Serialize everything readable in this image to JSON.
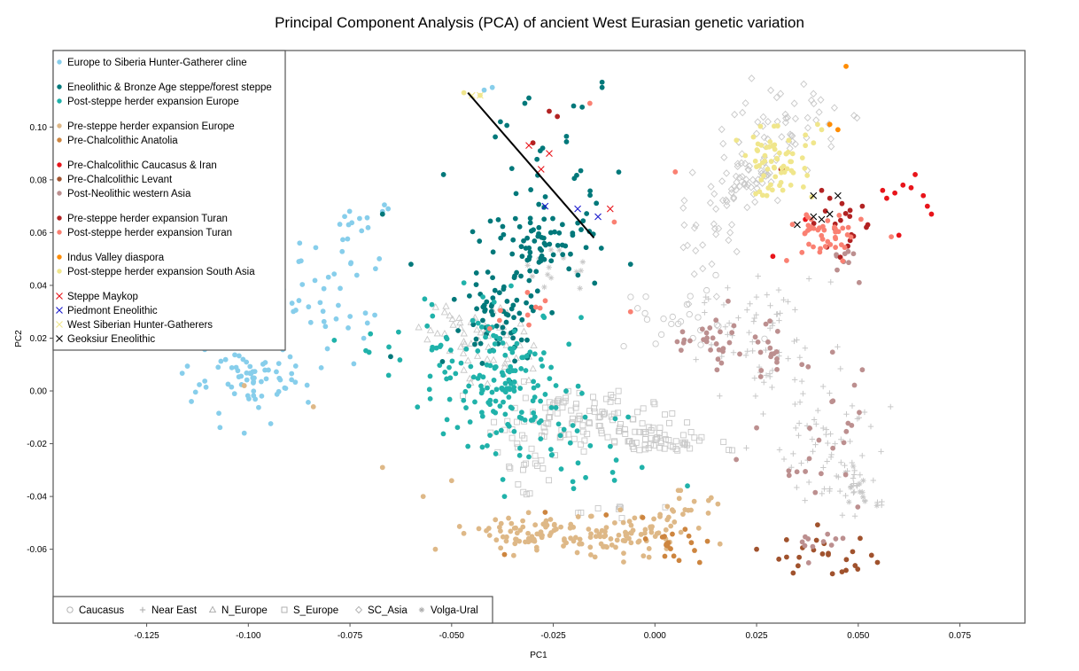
{
  "chart_data": {
    "type": "scatter",
    "title": "Principal Component Analysis (PCA) of ancient West Eurasian genetic variation",
    "xlabel": "PC1",
    "ylabel": "PC2",
    "xlim": [
      -0.148,
      0.091
    ],
    "ylim": [
      -0.088,
      0.129
    ],
    "xticks": [
      "-0.125",
      "-0.100",
      "-0.075",
      "-0.050",
      "-0.025",
      "0.000",
      "0.025",
      "0.050",
      "0.075"
    ],
    "xtick_values": [
      -0.125,
      -0.1,
      -0.075,
      -0.05,
      -0.025,
      0.0,
      0.025,
      0.05,
      0.075
    ],
    "yticks": [
      "-0.06",
      "-0.04",
      "-0.02",
      "0.00",
      "0.02",
      "0.04",
      "0.06",
      "0.08",
      "0.10"
    ],
    "ytick_values": [
      -0.06,
      -0.04,
      -0.02,
      0.0,
      0.02,
      0.04,
      0.06,
      0.08,
      0.1
    ],
    "grid": false,
    "legend_position": "top-left",
    "reference_legend_position": "bottom-left",
    "line": {
      "x": [
        -0.046,
        -0.015
      ],
      "y": [
        0.113,
        0.058
      ],
      "color": "#000000"
    },
    "legend_groups": [
      [
        "Europe to Siberia Hunter-Gatherer cline"
      ],
      [
        "Eneolithic & Bronze Age steppe/forest steppe",
        "Post-steppe herder expansion Europe"
      ],
      [
        "Pre-steppe herder expansion Europe",
        "Pre-Chalcolithic Anatolia"
      ],
      [
        "Pre-Chalcolithic Caucasus & Iran",
        "Pre-Chalcolithic Levant",
        "Post-Neolithic western Asia"
      ],
      [
        "Pre-steppe herder expansion Turan",
        "Post-steppe herder expansion Turan"
      ],
      [
        "Indus Valley diaspora",
        "Post-steppe herder expansion South Asia"
      ],
      [
        "Steppe Maykop",
        "Piedmont Eneolithic",
        "West Siberian Hunter-Gatherers",
        "Geoksiur Eneolithic"
      ]
    ],
    "series": [
      {
        "name": "Europe to Siberia Hunter-Gatherer cline",
        "marker": "dot",
        "color": "#87ceeb",
        "clusters": [
          {
            "cx": -0.1,
            "cy": 0.004,
            "sx": 0.007,
            "sy": 0.007,
            "n": 70
          },
          {
            "cx": -0.085,
            "cy": 0.032,
            "sx": 0.008,
            "sy": 0.012,
            "n": 45
          },
          {
            "cx": -0.072,
            "cy": 0.063,
            "sx": 0.004,
            "sy": 0.005,
            "n": 14
          }
        ],
        "points": [
          [
            -0.114,
            -0.004
          ],
          [
            -0.101,
            -0.016
          ],
          [
            -0.042,
            0.114
          ],
          [
            -0.04,
            0.115
          ],
          [
            -0.094,
            0.033
          ],
          [
            -0.067,
            0.068
          ]
        ]
      },
      {
        "name": "Eneolithic & Bronze Age steppe/forest steppe",
        "marker": "dot",
        "color": "#00787a",
        "clusters": [
          {
            "cx": -0.028,
            "cy": 0.055,
            "sx": 0.007,
            "sy": 0.007,
            "n": 75
          },
          {
            "cx": -0.038,
            "cy": 0.027,
            "sx": 0.006,
            "sy": 0.009,
            "n": 65
          },
          {
            "cx": -0.024,
            "cy": 0.082,
            "sx": 0.009,
            "sy": 0.015,
            "n": 25
          }
        ],
        "points": [
          [
            -0.013,
            0.115
          ],
          [
            -0.013,
            0.117
          ],
          [
            -0.031,
            0.111
          ],
          [
            -0.032,
            0.109
          ],
          [
            -0.052,
            0.082
          ],
          [
            -0.067,
            0.067
          ],
          [
            -0.06,
            0.048
          ],
          [
            -0.006,
            0.048
          ],
          [
            -0.038,
            0.102
          ],
          [
            -0.065,
            0.013
          ],
          [
            -0.02,
            0.108
          ]
        ]
      },
      {
        "name": "Post-steppe herder expansion Europe",
        "marker": "dot",
        "color": "#20b2aa",
        "clusters": [
          {
            "cx": -0.038,
            "cy": 0.007,
            "sx": 0.008,
            "sy": 0.012,
            "n": 130
          },
          {
            "cx": -0.025,
            "cy": -0.017,
            "sx": 0.01,
            "sy": 0.012,
            "n": 45
          },
          {
            "cx": -0.055,
            "cy": 0.018,
            "sx": 0.01,
            "sy": 0.008,
            "n": 20
          }
        ],
        "points": [
          [
            -0.046,
            -0.021
          ],
          [
            -0.037,
            -0.04
          ],
          [
            -0.02,
            -0.037
          ],
          [
            0.008,
            -0.036
          ],
          [
            -0.03,
            -0.011
          ]
        ]
      },
      {
        "name": "Pre-steppe herder expansion Europe",
        "marker": "dot",
        "color": "#deb887",
        "clusters": [
          {
            "cx": -0.03,
            "cy": -0.054,
            "sx": 0.006,
            "sy": 0.003,
            "n": 70
          },
          {
            "cx": -0.008,
            "cy": -0.055,
            "sx": 0.007,
            "sy": 0.004,
            "n": 75
          },
          {
            "cx": 0.008,
            "cy": -0.046,
            "sx": 0.005,
            "sy": 0.004,
            "n": 20
          }
        ],
        "points": [
          [
            -0.067,
            -0.029
          ],
          [
            -0.05,
            -0.034
          ],
          [
            -0.057,
            -0.04
          ],
          [
            -0.084,
            -0.006
          ],
          [
            -0.054,
            -0.06
          ],
          [
            -0.047,
            -0.054
          ],
          [
            0.016,
            -0.058
          ],
          [
            -0.101,
            0.002
          ]
        ]
      },
      {
        "name": "Pre-Chalcolithic Anatolia",
        "marker": "dot",
        "color": "#cd853f",
        "clusters": [
          {
            "cx": 0.004,
            "cy": -0.058,
            "sx": 0.0025,
            "sy": 0.003,
            "n": 18
          }
        ],
        "points": [
          [
            -0.003,
            -0.048
          ],
          [
            -0.037,
            -0.062
          ],
          [
            -0.027,
            -0.046
          ],
          [
            0.011,
            -0.065
          ],
          [
            -0.012,
            -0.047
          ]
        ]
      },
      {
        "name": "Pre-Chalcolithic Caucasus & Iran",
        "marker": "dot",
        "color": "#e8141a",
        "clusters": [],
        "points": [
          [
            0.056,
            0.076
          ],
          [
            0.059,
            0.075
          ],
          [
            0.061,
            0.078
          ],
          [
            0.063,
            0.077
          ],
          [
            0.064,
            0.082
          ],
          [
            0.066,
            0.074
          ],
          [
            0.067,
            0.07
          ],
          [
            0.068,
            0.067
          ],
          [
            0.057,
            0.073
          ],
          [
            0.06,
            0.059
          ],
          [
            0.029,
            0.051
          ],
          [
            0.037,
            0.065
          ]
        ]
      },
      {
        "name": "Pre-Chalcolithic Levant",
        "marker": "dot",
        "color": "#a0522d",
        "clusters": [
          {
            "cx": 0.042,
            "cy": -0.062,
            "sx": 0.007,
            "sy": 0.004,
            "n": 22
          }
        ],
        "points": [
          [
            0.025,
            -0.06
          ],
          [
            0.047,
            -0.068
          ],
          [
            0.034,
            -0.069
          ]
        ]
      },
      {
        "name": "Post-Neolithic western Asia",
        "marker": "dot",
        "color": "#bc8f8f",
        "clusters": [
          {
            "cx": 0.013,
            "cy": 0.018,
            "sx": 0.006,
            "sy": 0.005,
            "n": 25
          },
          {
            "cx": 0.027,
            "cy": 0.014,
            "sx": 0.004,
            "sy": 0.005,
            "n": 18
          },
          {
            "cx": 0.043,
            "cy": -0.025,
            "sx": 0.006,
            "sy": 0.02,
            "n": 25
          },
          {
            "cx": 0.04,
            "cy": -0.056,
            "sx": 0.004,
            "sy": 0.003,
            "n": 10
          },
          {
            "cx": 0.047,
            "cy": 0.05,
            "sx": 0.002,
            "sy": 0.003,
            "n": 8
          }
        ],
        "points": [
          [
            0.02,
            -0.026
          ],
          [
            0.025,
            -0.014
          ],
          [
            0.033,
            -0.032
          ],
          [
            0.018,
            0.034
          ],
          [
            0.051,
            0.008
          ]
        ]
      },
      {
        "name": "Pre-steppe herder expansion Turan",
        "marker": "dot",
        "color": "#b22222",
        "clusters": [
          {
            "cx": 0.046,
            "cy": 0.062,
            "sx": 0.003,
            "sy": 0.005,
            "n": 14
          }
        ],
        "points": [
          [
            -0.026,
            0.106
          ],
          [
            -0.024,
            0.104
          ],
          [
            0.031,
            0.084
          ],
          [
            0.032,
            0.084
          ],
          [
            0.041,
            0.076
          ],
          [
            0.046,
            0.071
          ],
          [
            0.043,
            0.073
          ],
          [
            0.051,
            0.07
          ],
          [
            0.048,
            0.057
          ],
          [
            -0.03,
            0.094
          ],
          [
            0.052,
            0.062
          ]
        ]
      },
      {
        "name": "Post-steppe herder expansion Turan",
        "marker": "dot",
        "color": "#fa8072",
        "clusters": [
          {
            "cx": 0.042,
            "cy": 0.058,
            "sx": 0.0045,
            "sy": 0.005,
            "n": 45
          },
          {
            "cx": -0.034,
            "cy": 0.031,
            "sx": 0.004,
            "sy": 0.004,
            "n": 8
          }
        ],
        "points": [
          [
            -0.016,
            0.109
          ],
          [
            -0.01,
            0.064
          ],
          [
            0.005,
            0.083
          ],
          [
            -0.006,
            0.03
          ],
          [
            -0.031,
            0.025
          ]
        ]
      },
      {
        "name": "Indus Valley diaspora",
        "marker": "dot",
        "color": "#ff8c00",
        "clusters": [],
        "points": [
          [
            0.047,
            0.123
          ],
          [
            0.043,
            0.101
          ],
          [
            0.045,
            0.099
          ]
        ]
      },
      {
        "name": "Post-steppe herder expansion South Asia",
        "marker": "dot",
        "color": "#f0e68c",
        "clusters": [
          {
            "cx": 0.029,
            "cy": 0.086,
            "sx": 0.004,
            "sy": 0.006,
            "n": 60
          }
        ],
        "points": [
          [
            -0.047,
            0.113
          ],
          [
            -0.043,
            0.112
          ],
          [
            0.04,
            0.101
          ],
          [
            0.037,
            0.097
          ],
          [
            0.039,
            0.094
          ],
          [
            0.037,
            0.093
          ],
          [
            0.041,
            0.099
          ],
          [
            0.031,
            0.079
          ]
        ]
      },
      {
        "name": "Steppe Maykop",
        "marker": "x",
        "color": "#e8141a",
        "clusters": [],
        "points": [
          [
            -0.031,
            0.093
          ],
          [
            -0.026,
            0.09
          ],
          [
            -0.028,
            0.084
          ],
          [
            -0.011,
            0.069
          ]
        ]
      },
      {
        "name": "Piedmont Eneolithic",
        "marker": "x",
        "color": "#1a1acd",
        "clusters": [],
        "points": [
          [
            -0.027,
            0.07
          ],
          [
            -0.019,
            0.069
          ],
          [
            -0.014,
            0.066
          ]
        ]
      },
      {
        "name": "West Siberian Hunter-Gatherers",
        "marker": "x",
        "color": "#f0e68c",
        "clusters": [],
        "points": [
          [
            -0.045,
            0.112
          ],
          [
            -0.043,
            0.112
          ]
        ]
      },
      {
        "name": "Geoksiur Eneolithic",
        "marker": "x",
        "color": "#000000",
        "clusters": [],
        "points": [
          [
            0.039,
            0.074
          ],
          [
            0.045,
            0.074
          ],
          [
            0.039,
            0.066
          ],
          [
            0.041,
            0.065
          ],
          [
            0.035,
            0.063
          ],
          [
            0.043,
            0.067
          ]
        ]
      }
    ],
    "reference_series": [
      {
        "name": "Caucasus",
        "marker": "circle",
        "color": "#c8c8c8",
        "clusters": [
          {
            "cx": 0.005,
            "cy": 0.026,
            "sx": 0.01,
            "sy": 0.006,
            "n": 25
          }
        ]
      },
      {
        "name": "Near East",
        "marker": "plus",
        "color": "#c8c8c8",
        "clusters": [
          {
            "cx": 0.027,
            "cy": 0.018,
            "sx": 0.008,
            "sy": 0.012,
            "n": 70
          },
          {
            "cx": 0.042,
            "cy": -0.02,
            "sx": 0.006,
            "sy": 0.012,
            "n": 50
          },
          {
            "cx": 0.05,
            "cy": -0.035,
            "sx": 0.004,
            "sy": 0.006,
            "n": 25
          }
        ]
      },
      {
        "name": "N_Europe",
        "marker": "triangle",
        "color": "#c8c8c8",
        "clusters": [
          {
            "cx": -0.044,
            "cy": 0.025,
            "sx": 0.007,
            "sy": 0.006,
            "n": 40
          },
          {
            "cx": -0.04,
            "cy": 0.01,
            "sx": 0.005,
            "sy": 0.006,
            "n": 20
          }
        ]
      },
      {
        "name": "S_Europe",
        "marker": "square",
        "color": "#c8c8c8",
        "clusters": [
          {
            "cx": -0.02,
            "cy": -0.01,
            "sx": 0.01,
            "sy": 0.005,
            "n": 100
          },
          {
            "cx": 0.0,
            "cy": -0.019,
            "sx": 0.007,
            "sy": 0.003,
            "n": 60
          },
          {
            "cx": -0.032,
            "cy": -0.026,
            "sx": 0.006,
            "sy": 0.005,
            "n": 20
          },
          {
            "cx": -0.012,
            "cy": -0.046,
            "sx": 0.005,
            "sy": 0.002,
            "n": 8
          }
        ]
      },
      {
        "name": "SC_Asia",
        "marker": "diamond",
        "color": "#c8c8c8",
        "clusters": [
          {
            "cx": 0.022,
            "cy": 0.081,
            "sx": 0.006,
            "sy": 0.008,
            "n": 75
          },
          {
            "cx": 0.034,
            "cy": 0.103,
            "sx": 0.006,
            "sy": 0.007,
            "n": 40
          },
          {
            "cx": 0.013,
            "cy": 0.057,
            "sx": 0.004,
            "sy": 0.008,
            "n": 20
          }
        ]
      },
      {
        "name": "Volga-Ural",
        "marker": "asterisk",
        "color": "#c8c8c8",
        "clusters": [
          {
            "cx": -0.024,
            "cy": 0.046,
            "sx": 0.004,
            "sy": 0.004,
            "n": 14
          },
          {
            "cx": 0.051,
            "cy": -0.037,
            "sx": 0.003,
            "sy": 0.004,
            "n": 12
          }
        ]
      }
    ]
  }
}
